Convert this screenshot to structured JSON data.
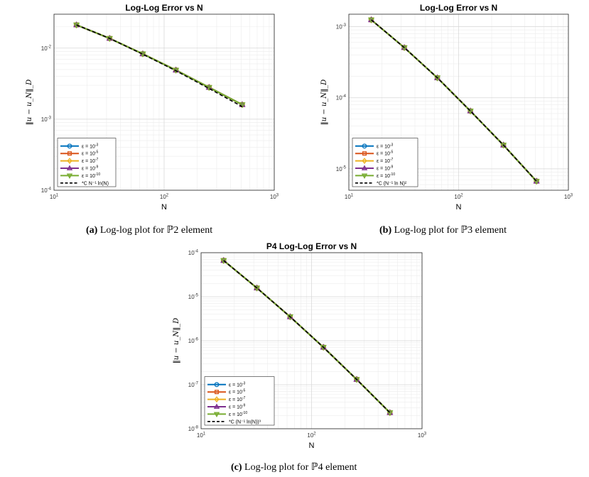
{
  "colors": {
    "eps1": "#0072BD",
    "eps2": "#D95319",
    "eps3": "#EDB120",
    "eps4": "#7E2F8E",
    "eps5": "#77AC30",
    "ref": "#000000"
  },
  "captions": [
    {
      "label": "(a)",
      "text": " Log-log plot for ℙ2 element"
    },
    {
      "label": "(b)",
      "text": " Log-log plot for ℙ3 element"
    },
    {
      "label": "(c)",
      "text": " Log-log plot for ℙ4 element"
    }
  ],
  "chart_data": [
    {
      "type": "line",
      "title": "Log-Log Error vs N",
      "xlabel": "N",
      "ylabel": "‖u − u_N‖_D",
      "xscale": "log",
      "yscale": "log",
      "xlim": [
        10,
        1000
      ],
      "ylim": [
        0.0001,
        0.03
      ],
      "xticks": [
        {
          "v": 10,
          "b": "10",
          "e": "1"
        },
        {
          "v": 100,
          "b": "10",
          "e": "2"
        },
        {
          "v": 1000,
          "b": "10",
          "e": "3"
        }
      ],
      "yticks": [
        {
          "v": 0.0001,
          "b": "10",
          "e": "-4"
        },
        {
          "v": 0.001,
          "b": "10",
          "e": "-3"
        },
        {
          "v": 0.01,
          "b": "10",
          "e": "-2"
        }
      ],
      "grid": true,
      "legend_position": "bottom-left",
      "x": [
        16,
        32,
        64,
        128,
        256,
        512
      ],
      "series": [
        {
          "name": "ε = 10",
          "sup": "-3",
          "marker": "circle",
          "values": [
            0.0212,
            0.0137,
            0.0083,
            0.0049,
            0.0028,
            0.0016
          ]
        },
        {
          "name": "ε = 10",
          "sup": "-5",
          "marker": "square",
          "values": [
            0.0212,
            0.0137,
            0.0083,
            0.0049,
            0.0028,
            0.0016
          ]
        },
        {
          "name": "ε = 10",
          "sup": "-7",
          "marker": "diamond",
          "values": [
            0.0212,
            0.0137,
            0.0083,
            0.0049,
            0.0028,
            0.0016
          ]
        },
        {
          "name": "ε = 10",
          "sup": "-9",
          "marker": "triangle-up",
          "values": [
            0.0212,
            0.0137,
            0.0083,
            0.0049,
            0.0028,
            0.0016
          ]
        },
        {
          "name": "ε = 10",
          "sup": "-10",
          "marker": "triangle-down",
          "values": [
            0.0212,
            0.0137,
            0.0083,
            0.0049,
            0.0028,
            0.0016
          ]
        }
      ],
      "reference": {
        "name": "*C N⁻¹ ln(N)",
        "values": [
          0.0212,
          0.0137,
          0.0082,
          0.0048,
          0.0027,
          0.0015
        ]
      }
    },
    {
      "type": "line",
      "title": "Log-Log Error vs N",
      "xlabel": "N",
      "ylabel": "‖u − u_N‖_D",
      "xscale": "log",
      "yscale": "log",
      "xlim": [
        10,
        1000
      ],
      "ylim": [
        5e-06,
        0.0015
      ],
      "xticks": [
        {
          "v": 10,
          "b": "10",
          "e": "1"
        },
        {
          "v": 100,
          "b": "10",
          "e": "2"
        },
        {
          "v": 1000,
          "b": "10",
          "e": "3"
        }
      ],
      "yticks": [
        {
          "v": 1e-05,
          "b": "10",
          "e": "-5"
        },
        {
          "v": 0.0001,
          "b": "10",
          "e": "-4"
        },
        {
          "v": 0.001,
          "b": "10",
          "e": "-3"
        }
      ],
      "grid": true,
      "legend_position": "bottom-left",
      "x": [
        16,
        32,
        64,
        128,
        256,
        512
      ],
      "series": [
        {
          "name": "ε = 10",
          "sup": "-3",
          "marker": "circle",
          "values": [
            0.00125,
            0.000508,
            0.000191,
            6.52e-05,
            2.16e-05,
            6.7e-06
          ]
        },
        {
          "name": "ε = 10",
          "sup": "-5",
          "marker": "square",
          "values": [
            0.00125,
            0.000508,
            0.000191,
            6.52e-05,
            2.16e-05,
            6.7e-06
          ]
        },
        {
          "name": "ε = 10",
          "sup": "-7",
          "marker": "diamond",
          "values": [
            0.00125,
            0.000508,
            0.000191,
            6.52e-05,
            2.16e-05,
            6.7e-06
          ]
        },
        {
          "name": "ε = 10",
          "sup": "-9",
          "marker": "triangle-up",
          "values": [
            0.00125,
            0.000508,
            0.000191,
            6.52e-05,
            2.16e-05,
            6.7e-06
          ]
        },
        {
          "name": "ε = 10",
          "sup": "-10",
          "marker": "triangle-down",
          "values": [
            0.00125,
            0.000508,
            0.000191,
            6.52e-05,
            2.16e-05,
            6.7e-06
          ]
        }
      ],
      "reference": {
        "name": "*C (N⁻¹ ln N)²",
        "values": [
          0.00125,
          0.000508,
          0.000191,
          6.52e-05,
          2.16e-05,
          6.7e-06
        ]
      }
    },
    {
      "type": "line",
      "title": "P4 Log-Log Error vs N",
      "xlabel": "N",
      "ylabel": "‖u − u_N‖_D",
      "xscale": "log",
      "yscale": "log",
      "xlim": [
        10,
        1000
      ],
      "ylim": [
        1e-08,
        0.0001
      ],
      "xticks": [
        {
          "v": 10,
          "b": "10",
          "e": "1"
        },
        {
          "v": 100,
          "b": "10",
          "e": "2"
        },
        {
          "v": 1000,
          "b": "10",
          "e": "3"
        }
      ],
      "yticks": [
        {
          "v": 1e-08,
          "b": "10",
          "e": "-8"
        },
        {
          "v": 1e-07,
          "b": "10",
          "e": "-7"
        },
        {
          "v": 1e-06,
          "b": "10",
          "e": "-6"
        },
        {
          "v": 1e-05,
          "b": "10",
          "e": "-5"
        },
        {
          "v": 0.0001,
          "b": "10",
          "e": "-4"
        }
      ],
      "grid": true,
      "legend_position": "bottom-left",
      "x": [
        16,
        32,
        64,
        128,
        256,
        512
      ],
      "series": [
        {
          "name": "ε = 10",
          "sup": "-3",
          "marker": "circle",
          "values": [
            6.65e-05,
            1.58e-05,
            3.5e-06,
            7.1e-07,
            1.32e-07,
            2.32e-08
          ]
        },
        {
          "name": "ε = 10",
          "sup": "-5",
          "marker": "square",
          "values": [
            6.65e-05,
            1.58e-05,
            3.5e-06,
            7.1e-07,
            1.32e-07,
            2.32e-08
          ]
        },
        {
          "name": "ε = 10",
          "sup": "-7",
          "marker": "diamond",
          "values": [
            6.65e-05,
            1.58e-05,
            3.5e-06,
            7.1e-07,
            1.32e-07,
            2.32e-08
          ]
        },
        {
          "name": "ε = 10",
          "sup": "-9",
          "marker": "triangle-up",
          "values": [
            6.65e-05,
            1.58e-05,
            3.5e-06,
            7.1e-07,
            1.32e-07,
            2.32e-08
          ]
        },
        {
          "name": "ε = 10",
          "sup": "-10",
          "marker": "triangle-down",
          "values": [
            6.65e-05,
            1.58e-05,
            3.5e-06,
            7.1e-07,
            1.32e-07,
            2.32e-08
          ]
        }
      ],
      "reference": {
        "name": "*C (N⁻¹ ln(N))³",
        "values": [
          6.65e-05,
          1.58e-05,
          3.5e-06,
          7.1e-07,
          1.32e-07,
          2.32e-08
        ]
      }
    }
  ]
}
